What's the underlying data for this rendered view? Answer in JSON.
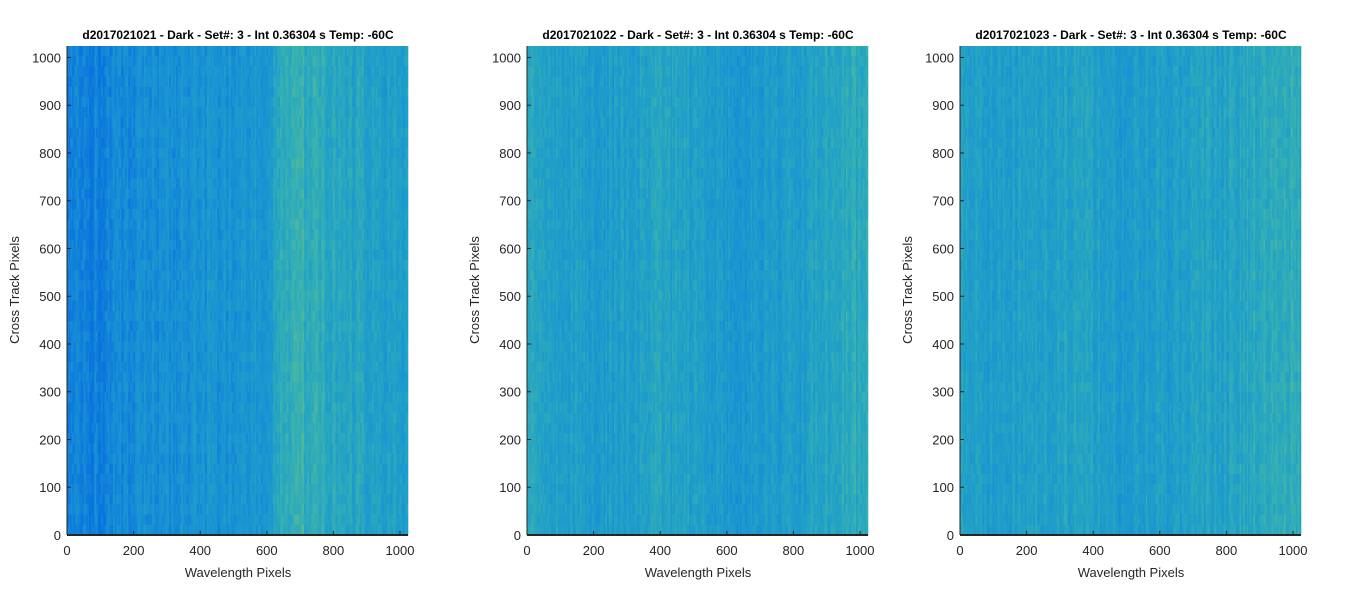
{
  "chart_data": [
    {
      "type": "heatmap",
      "title": "d2017021021 - Dark - Set#: 3 - Int 0.36304 s Temp: -60C",
      "xlabel": "Wavelength Pixels",
      "ylabel": "Cross Track Pixels",
      "xlim": [
        0,
        1024
      ],
      "ylim": [
        0,
        1024
      ],
      "xticks": [
        0,
        200,
        400,
        600,
        800,
        1000
      ],
      "yticks": [
        0,
        100,
        200,
        300,
        400,
        500,
        600,
        700,
        800,
        900,
        1000
      ],
      "colormap": [
        "#0a72de",
        "#1890d5",
        "#22a2c6",
        "#3cb3ae",
        "#7fbf6e"
      ],
      "column_intensity": {
        "x": [
          0,
          100,
          200,
          300,
          400,
          500,
          600,
          650,
          700,
          800,
          900,
          1024
        ],
        "value": [
          0.18,
          0.12,
          0.22,
          0.28,
          0.3,
          0.32,
          0.38,
          0.62,
          0.68,
          0.6,
          0.5,
          0.42
        ]
      }
    },
    {
      "type": "heatmap",
      "title": "d2017021022 - Dark - Set#: 3 - Int 0.36304 s Temp: -60C",
      "xlabel": "Wavelength Pixels",
      "ylabel": "Cross Track Pixels",
      "xlim": [
        0,
        1024
      ],
      "ylim": [
        0,
        1024
      ],
      "xticks": [
        0,
        200,
        400,
        600,
        800,
        1000
      ],
      "yticks": [
        0,
        100,
        200,
        300,
        400,
        500,
        600,
        700,
        800,
        900,
        1000
      ],
      "colormap": [
        "#0a72de",
        "#1890d5",
        "#22a2c6",
        "#3cb3ae",
        "#7fbf6e"
      ],
      "column_intensity": {
        "x": [
          0,
          100,
          200,
          300,
          400,
          500,
          600,
          700,
          800,
          900,
          1024
        ],
        "value": [
          0.55,
          0.45,
          0.42,
          0.45,
          0.52,
          0.48,
          0.4,
          0.38,
          0.42,
          0.55,
          0.62
        ]
      }
    },
    {
      "type": "heatmap",
      "title": "d2017021023 - Dark - Set#: 3 - Int 0.36304 s Temp: -60C",
      "xlabel": "Wavelength Pixels",
      "ylabel": "Cross Track Pixels",
      "xlim": [
        0,
        1024
      ],
      "ylim": [
        0,
        1024
      ],
      "xticks": [
        0,
        200,
        400,
        600,
        800,
        1000
      ],
      "yticks": [
        0,
        100,
        200,
        300,
        400,
        500,
        600,
        700,
        800,
        900,
        1000
      ],
      "colormap": [
        "#0a72de",
        "#1890d5",
        "#22a2c6",
        "#3cb3ae",
        "#7fbf6e"
      ],
      "column_intensity": {
        "x": [
          0,
          100,
          200,
          300,
          400,
          500,
          600,
          700,
          800,
          900,
          1024
        ],
        "value": [
          0.5,
          0.45,
          0.48,
          0.52,
          0.48,
          0.42,
          0.45,
          0.48,
          0.52,
          0.62,
          0.65
        ]
      }
    }
  ]
}
